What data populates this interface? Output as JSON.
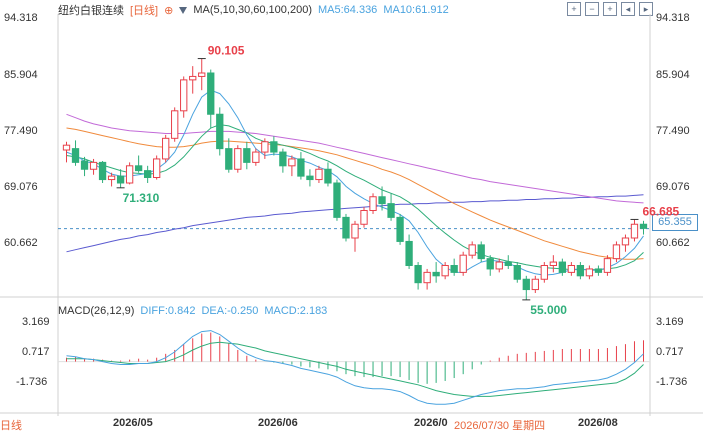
{
  "header": {
    "instrument": "纽约白银连续",
    "period_badge": "[日线]",
    "ma_label": "MA(5,10,30,60,100,200)",
    "ma5": "MA5:64.336",
    "ma10": "MA10:61.912"
  },
  "y_axis_labels": [
    "94.318",
    "85.904",
    "77.490",
    "69.076",
    "60.662"
  ],
  "right_axis_labels": [
    "94.318",
    "85.904",
    "77.490",
    "69.076",
    "60.662"
  ],
  "macd": {
    "label": "MACD(26,12,9)",
    "diff": "DIFF:0.842",
    "dea": "DEA:-0.250",
    "macd": "MACD:2.183",
    "y_labels": [
      "3.169",
      "0.717",
      "-1.736"
    ]
  },
  "x_axis_labels": [
    "2026/05",
    "2026/06",
    "2026/0",
    "2026/08"
  ],
  "tooltip_date": "2026/07/30 星期四",
  "bottom_tag": "日线",
  "current_price": "65.355",
  "annotations": {
    "high": "90.105",
    "low_left": "71.310",
    "low_mid": "55.000",
    "last_high": "66.685"
  },
  "colors": {
    "up": "#e8404a",
    "down": "#2fae7a",
    "ma5": "#4aa3df",
    "ma10": "#2fae7a",
    "ma30": "#f08a3c",
    "ma60": "#c26ad8",
    "ma200": "#5a5ad0"
  },
  "chart_data": {
    "type": "candlestick",
    "ylim": [
      56,
      96
    ],
    "candles": [
      [
        76.8,
        78.0,
        75.0,
        77.5
      ],
      [
        77.0,
        78.2,
        74.5,
        75.0
      ],
      [
        75.2,
        75.8,
        73.0,
        74.0
      ],
      [
        74.0,
        75.5,
        73.2,
        75.0
      ],
      [
        75.0,
        75.2,
        72.0,
        72.5
      ],
      [
        72.5,
        73.5,
        71.5,
        73.0
      ],
      [
        73.0,
        74.0,
        71.3,
        72.0
      ],
      [
        72.0,
        75.0,
        71.8,
        74.5
      ],
      [
        74.5,
        76.0,
        73.5,
        73.8
      ],
      [
        73.8,
        74.5,
        72.0,
        72.8
      ],
      [
        72.8,
        76.0,
        72.5,
        75.5
      ],
      [
        75.5,
        79.0,
        75.0,
        78.5
      ],
      [
        78.5,
        83.0,
        78.0,
        82.5
      ],
      [
        82.5,
        87.5,
        81.5,
        87.0
      ],
      [
        87.0,
        89.0,
        85.0,
        87.5
      ],
      [
        87.5,
        90.1,
        85.5,
        88.0
      ],
      [
        88.0,
        88.5,
        80.0,
        82.0
      ],
      [
        82.0,
        83.0,
        76.0,
        77.0
      ],
      [
        77.0,
        78.5,
        73.5,
        74.0
      ],
      [
        74.0,
        77.5,
        73.5,
        77.0
      ],
      [
        77.0,
        78.0,
        74.0,
        75.0
      ],
      [
        75.0,
        77.0,
        74.5,
        76.5
      ],
      [
        76.5,
        78.5,
        75.5,
        78.0
      ],
      [
        78.0,
        78.8,
        76.0,
        76.5
      ],
      [
        76.5,
        77.0,
        73.5,
        74.5
      ],
      [
        74.5,
        76.0,
        73.0,
        75.5
      ],
      [
        75.5,
        76.5,
        72.5,
        73.0
      ],
      [
        73.0,
        74.0,
        71.5,
        72.5
      ],
      [
        72.5,
        74.5,
        72.0,
        74.0
      ],
      [
        74.0,
        75.0,
        71.5,
        72.0
      ],
      [
        72.0,
        72.5,
        66.5,
        67.0
      ],
      [
        67.0,
        67.5,
        63.5,
        64.0
      ],
      [
        64.0,
        66.5,
        62.0,
        66.0
      ],
      [
        66.0,
        68.5,
        65.5,
        68.0
      ],
      [
        68.0,
        70.5,
        67.5,
        70.0
      ],
      [
        70.0,
        71.5,
        68.0,
        69.0
      ],
      [
        69.0,
        70.5,
        66.5,
        67.0
      ],
      [
        67.0,
        67.5,
        63.0,
        63.5
      ],
      [
        63.5,
        64.5,
        59.5,
        60.0
      ],
      [
        60.0,
        60.5,
        56.5,
        57.5
      ],
      [
        57.5,
        59.5,
        56.5,
        59.0
      ],
      [
        59.0,
        60.5,
        57.5,
        58.5
      ],
      [
        58.5,
        60.5,
        58.0,
        60.0
      ],
      [
        60.0,
        61.0,
        58.5,
        59.0
      ],
      [
        59.0,
        62.0,
        58.5,
        61.5
      ],
      [
        61.5,
        63.5,
        61.0,
        63.0
      ],
      [
        63.0,
        63.5,
        60.5,
        61.0
      ],
      [
        61.0,
        61.5,
        58.5,
        59.5
      ],
      [
        59.5,
        61.0,
        59.0,
        60.5
      ],
      [
        60.5,
        61.5,
        59.5,
        60.0
      ],
      [
        60.0,
        60.5,
        57.5,
        58.0
      ],
      [
        58.0,
        58.5,
        55.0,
        56.5
      ],
      [
        56.5,
        58.5,
        56.0,
        58.0
      ],
      [
        58.0,
        60.5,
        57.5,
        60.0
      ],
      [
        60.0,
        61.5,
        59.0,
        60.5
      ],
      [
        60.5,
        61.0,
        58.5,
        59.0
      ],
      [
        59.0,
        60.5,
        58.5,
        60.0
      ],
      [
        60.0,
        60.5,
        58.0,
        58.5
      ],
      [
        58.5,
        60.0,
        58.0,
        59.5
      ],
      [
        59.5,
        60.0,
        58.5,
        59.0
      ],
      [
        59.0,
        61.5,
        58.5,
        61.0
      ],
      [
        61.0,
        63.5,
        60.5,
        63.0
      ],
      [
        63.0,
        64.5,
        62.0,
        64.0
      ],
      [
        64.0,
        66.7,
        63.5,
        66.0
      ],
      [
        66.0,
        66.5,
        64.5,
        65.4
      ]
    ],
    "ma5": [
      76.5,
      76.0,
      75.2,
      74.8,
      74.0,
      73.3,
      73.0,
      73.0,
      73.2,
      73.4,
      74.0,
      75.0,
      76.5,
      79.0,
      82.0,
      84.5,
      85.5,
      85.0,
      83.5,
      81.5,
      79.0,
      77.0,
      76.0,
      76.2,
      76.1,
      75.8,
      75.3,
      74.9,
      74.3,
      73.8,
      72.9,
      71.5,
      70.5,
      69.7,
      69.0,
      68.5,
      68.0,
      67.4,
      66.5,
      64.8,
      62.7,
      60.9,
      59.8,
      59.0,
      59.0,
      59.8,
      60.5,
      60.8,
      60.6,
      60.3,
      59.8,
      59.2,
      58.8,
      58.6,
      58.7,
      59.0,
      59.4,
      59.5,
      59.3,
      59.3,
      59.7,
      60.3,
      61.3,
      62.5,
      64.3
    ],
    "ma10": [
      76.0,
      75.8,
      75.5,
      75.0,
      74.6,
      74.2,
      73.8,
      73.5,
      73.4,
      73.3,
      73.4,
      73.8,
      74.6,
      75.8,
      77.3,
      78.8,
      80.0,
      80.5,
      80.3,
      79.8,
      79.3,
      78.5,
      78.0,
      77.8,
      77.5,
      77.2,
      76.8,
      76.3,
      75.7,
      75.2,
      74.5,
      73.7,
      73.0,
      72.4,
      71.7,
      71.0,
      70.5,
      70.0,
      69.2,
      68.2,
      67.0,
      65.8,
      64.7,
      63.7,
      62.8,
      62.1,
      61.6,
      61.2,
      60.9,
      60.6,
      60.4,
      60.1,
      59.9,
      59.7,
      59.6,
      59.5,
      59.4,
      59.4,
      59.4,
      59.4,
      59.5,
      59.7,
      60.1,
      60.7,
      61.9
    ],
    "ma30": [
      80.0,
      79.8,
      79.5,
      79.2,
      78.9,
      78.6,
      78.3,
      78.0,
      77.7,
      77.5,
      77.3,
      77.2,
      77.2,
      77.3,
      77.5,
      77.8,
      78.0,
      78.1,
      78.1,
      78.0,
      77.9,
      77.8,
      77.7,
      77.6,
      77.5,
      77.3,
      77.1,
      76.9,
      76.7,
      76.4,
      76.1,
      75.7,
      75.3,
      74.9,
      74.5,
      74.0,
      73.6,
      73.1,
      72.5,
      71.8,
      71.1,
      70.4,
      69.7,
      69.0,
      68.4,
      67.8,
      67.2,
      66.6,
      66.1,
      65.6,
      65.1,
      64.6,
      64.1,
      63.6,
      63.2,
      62.8,
      62.4,
      62.0,
      61.7,
      61.4,
      61.2,
      61.0,
      60.9,
      60.9,
      61.0
    ],
    "ma60": [
      82.0,
      81.5,
      81.0,
      80.6,
      80.3,
      80.0,
      79.8,
      79.6,
      79.5,
      79.4,
      79.3,
      79.2,
      79.2,
      79.2,
      79.3,
      79.4,
      79.5,
      79.5,
      79.5,
      79.4,
      79.3,
      79.2,
      79.0,
      78.8,
      78.6,
      78.4,
      78.2,
      78.0,
      77.8,
      77.5,
      77.2,
      76.9,
      76.6,
      76.3,
      76.0,
      75.7,
      75.4,
      75.1,
      74.8,
      74.5,
      74.2,
      73.9,
      73.6,
      73.3,
      73.0,
      72.7,
      72.5,
      72.2,
      72.0,
      71.8,
      71.6,
      71.4,
      71.2,
      71.0,
      70.8,
      70.6,
      70.4,
      70.2,
      70.0,
      69.8,
      69.6,
      69.4,
      69.3,
      69.2,
      69.1
    ],
    "ma200": [
      62.0,
      62.3,
      62.6,
      62.9,
      63.2,
      63.5,
      63.8,
      64.0,
      64.3,
      64.5,
      64.8,
      65.0,
      65.3,
      65.5,
      65.8,
      66.0,
      66.2,
      66.4,
      66.6,
      66.8,
      67.0,
      67.1,
      67.2,
      67.4,
      67.5,
      67.6,
      67.8,
      67.9,
      68.0,
      68.1,
      68.2,
      68.3,
      68.4,
      68.5,
      68.6,
      68.7,
      68.8,
      68.9,
      68.9,
      69.0,
      69.0,
      69.1,
      69.1,
      69.2,
      69.2,
      69.3,
      69.3,
      69.4,
      69.4,
      69.5,
      69.5,
      69.6,
      69.6,
      69.7,
      69.7,
      69.8,
      69.8,
      69.9,
      69.9,
      70.0,
      70.0,
      70.1,
      70.1,
      70.2,
      70.3
    ],
    "macd_hist": [
      0.4,
      0.5,
      0.3,
      0.3,
      0.2,
      0.1,
      0.1,
      0.2,
      0.3,
      0.2,
      0.4,
      0.8,
      1.2,
      1.8,
      2.4,
      2.9,
      3.0,
      2.6,
      1.9,
      1.2,
      0.6,
      0.2,
      0.0,
      -0.1,
      -0.2,
      -0.3,
      -0.5,
      -0.6,
      -0.7,
      -0.8,
      -1.0,
      -1.3,
      -1.5,
      -1.6,
      -1.6,
      -1.5,
      -1.5,
      -1.6,
      -1.9,
      -2.2,
      -2.3,
      -2.2,
      -2.0,
      -1.7,
      -1.3,
      -0.8,
      -0.3,
      0.1,
      0.4,
      0.6,
      0.8,
      0.9,
      1.0,
      1.1,
      1.2,
      1.3,
      1.3,
      1.3,
      1.3,
      1.3,
      1.4,
      1.6,
      1.8,
      2.1,
      2.2
    ],
    "diff": [
      0.6,
      0.5,
      0.3,
      0.2,
      0.0,
      -0.2,
      -0.3,
      -0.3,
      -0.2,
      -0.2,
      0.0,
      0.4,
      1.0,
      1.8,
      2.6,
      3.1,
      3.2,
      2.8,
      2.1,
      1.4,
      0.8,
      0.4,
      0.1,
      0.0,
      -0.2,
      -0.4,
      -0.7,
      -0.9,
      -1.1,
      -1.3,
      -1.6,
      -2.1,
      -2.5,
      -2.7,
      -2.8,
      -2.8,
      -2.9,
      -3.1,
      -3.5,
      -4.0,
      -4.3,
      -4.4,
      -4.4,
      -4.3,
      -4.0,
      -3.7,
      -3.4,
      -3.2,
      -3.0,
      -2.9,
      -2.8,
      -2.8,
      -2.7,
      -2.6,
      -2.4,
      -2.3,
      -2.2,
      -2.1,
      -2.0,
      -1.9,
      -1.7,
      -1.3,
      -0.8,
      -0.1,
      0.8
    ],
    "dea": [
      0.3,
      0.3,
      0.3,
      0.2,
      0.1,
      0.0,
      -0.1,
      -0.2,
      -0.2,
      -0.2,
      -0.1,
      0.0,
      0.3,
      0.7,
      1.2,
      1.6,
      1.9,
      2.0,
      1.9,
      1.8,
      1.6,
      1.4,
      1.1,
      0.9,
      0.7,
      0.5,
      0.3,
      0.1,
      -0.1,
      -0.3,
      -0.5,
      -0.8,
      -1.0,
      -1.2,
      -1.4,
      -1.6,
      -1.8,
      -2.0,
      -2.2,
      -2.4,
      -2.7,
      -3.0,
      -3.2,
      -3.4,
      -3.5,
      -3.6,
      -3.6,
      -3.6,
      -3.5,
      -3.4,
      -3.3,
      -3.2,
      -3.1,
      -3.0,
      -2.9,
      -2.8,
      -2.7,
      -2.6,
      -2.5,
      -2.4,
      -2.3,
      -2.2,
      -1.8,
      -1.2,
      -0.3
    ],
    "macd_ylim": [
      -5.0,
      4.5
    ]
  }
}
